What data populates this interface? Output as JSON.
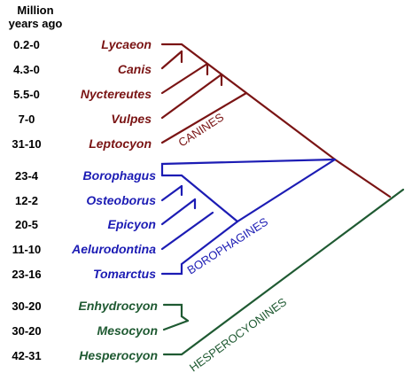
{
  "header": {
    "line1": "Million",
    "line2": "years ago"
  },
  "colors": {
    "canines": "#7a1414",
    "borophagines": "#1c1cb4",
    "hesperocyonines": "#1f5a32",
    "text": "#000000"
  },
  "groups": {
    "canines": {
      "label": "CANINES",
      "taxa": [
        {
          "name": "Lycaeon",
          "age": "0.2-0"
        },
        {
          "name": "Canis",
          "age": "4.3-0"
        },
        {
          "name": "Nyctereutes",
          "age": "5.5-0"
        },
        {
          "name": "Vulpes",
          "age": "7-0"
        },
        {
          "name": "Leptocyon",
          "age": "31-10"
        }
      ]
    },
    "borophagines": {
      "label": "BOROPHAGINES",
      "taxa": [
        {
          "name": "Borophagus",
          "age": "23-4"
        },
        {
          "name": "Osteoborus",
          "age": "12-2"
        },
        {
          "name": "Epicyon",
          "age": "20-5"
        },
        {
          "name": "Aelurodontina",
          "age": "11-10"
        },
        {
          "name": "Tomarctus",
          "age": "23-16"
        }
      ]
    },
    "hesperocyonines": {
      "label": "HESPEROCYONINES",
      "taxa": [
        {
          "name": "Enhydrocyon",
          "age": "30-20"
        },
        {
          "name": "Mesocyon",
          "age": "30-20"
        },
        {
          "name": "Hesperocyon",
          "age": "42-31"
        }
      ]
    }
  }
}
